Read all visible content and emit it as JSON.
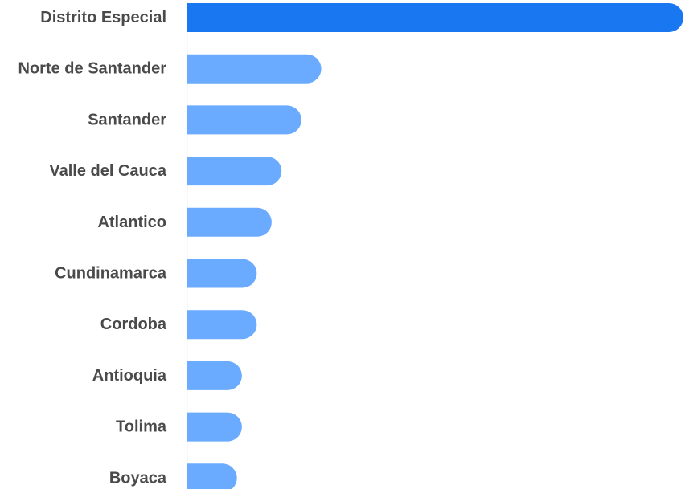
{
  "chart_data": {
    "type": "bar",
    "orientation": "horizontal",
    "categories": [
      "Distrito Especial",
      "Norte de Santander",
      "Santander",
      "Valle del Cauca",
      "Atlantico",
      "Cundinamarca",
      "Cordoba",
      "Antioquia",
      "Tolima",
      "Boyaca"
    ],
    "values": [
      100,
      27,
      23,
      19,
      17,
      14,
      14,
      11,
      11,
      10
    ],
    "highlight_index": 0,
    "xlim": [
      0,
      100
    ],
    "grid": false,
    "legend": "none",
    "title": "",
    "xlabel": "",
    "ylabel": ""
  },
  "colors": {
    "highlight": "#1a77f2",
    "bar": "#6aabff",
    "label": "#4a4a4a",
    "axis": "#eef0f3"
  }
}
